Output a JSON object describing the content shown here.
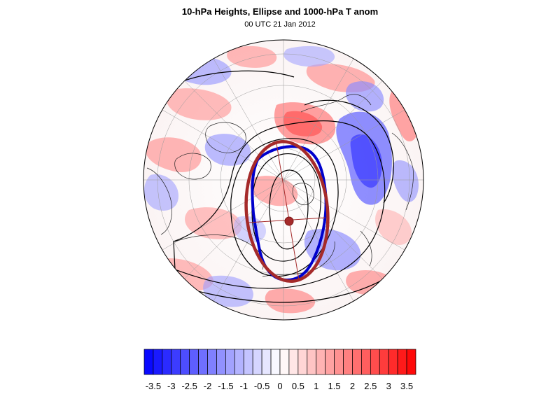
{
  "title": "10-hPa Heights, Ellipse and 1000-hPa T anom",
  "subtitle": "00 UTC 21 Jan 2012",
  "colorbar": {
    "labels": [
      "-3.5",
      "-3",
      "-2.5",
      "-2",
      "-1.5",
      "-1",
      "-0.5",
      "0",
      "0.5",
      "1",
      "1.5",
      "2",
      "2.5",
      "3",
      "3.5"
    ],
    "min": -3.75,
    "max": 3.75,
    "step": 0.25,
    "negative_color": "#0000ff",
    "positive_color": "#ff0000"
  },
  "map": {
    "projection": "north-polar-stereographic",
    "background": "#ffffff",
    "vortex_contour_color": "#0000cc",
    "ellipse_color": "#a52a2a",
    "centroid_color": "#a52a2a"
  }
}
